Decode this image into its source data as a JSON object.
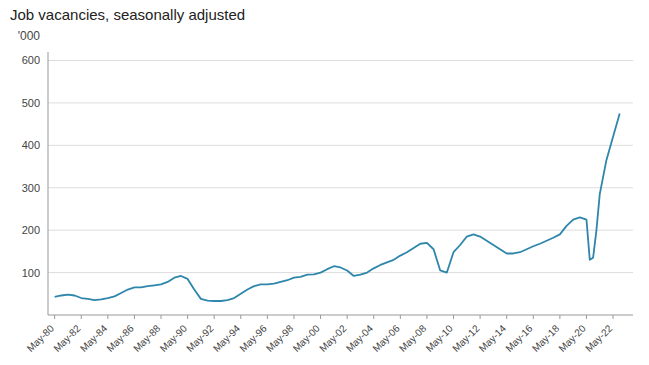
{
  "chart_data": {
    "type": "line",
    "title": "Job vacancies, seasonally adjusted",
    "ylabel": "'000",
    "color": "#2E86AB",
    "grid": true,
    "x": [
      1980,
      1980.5,
      1981,
      1981.5,
      1982,
      1982.5,
      1983,
      1983.5,
      1984,
      1984.5,
      1985,
      1985.5,
      1986,
      1986.5,
      1987,
      1987.5,
      1988,
      1988.5,
      1989,
      1989.5,
      1990,
      1990.5,
      1991,
      1991.5,
      1992,
      1992.5,
      1993,
      1993.5,
      1994,
      1994.5,
      1995,
      1995.5,
      1996,
      1996.5,
      1997,
      1997.5,
      1998,
      1998.5,
      1999,
      1999.5,
      2000,
      2000.5,
      2001,
      2001.5,
      2002,
      2002.5,
      2003,
      2003.5,
      2004,
      2004.5,
      2005,
      2005.5,
      2006,
      2006.5,
      2007,
      2007.5,
      2008,
      2008.5,
      2009,
      2009.5,
      2010,
      2010.5,
      2011,
      2011.5,
      2012,
      2012.5,
      2013,
      2013.5,
      2014,
      2014.5,
      2015,
      2015.5,
      2016,
      2016.5,
      2017,
      2017.5,
      2018,
      2018.5,
      2019,
      2019.5,
      2020,
      2020.25,
      2020.5,
      2020.75,
      2021,
      2021.5,
      2022,
      2022.5
    ],
    "values": [
      43,
      46,
      48,
      46,
      40,
      38,
      35,
      37,
      40,
      44,
      52,
      60,
      65,
      65,
      68,
      70,
      72,
      78,
      88,
      92,
      85,
      60,
      38,
      34,
      33,
      33,
      35,
      40,
      50,
      60,
      68,
      72,
      72,
      74,
      78,
      82,
      88,
      90,
      95,
      96,
      100,
      108,
      115,
      112,
      105,
      92,
      95,
      100,
      110,
      118,
      124,
      130,
      140,
      148,
      158,
      168,
      170,
      155,
      105,
      100,
      148,
      165,
      185,
      190,
      185,
      175,
      165,
      155,
      145,
      145,
      148,
      155,
      162,
      168,
      175,
      182,
      190,
      210,
      225,
      230,
      225,
      130,
      135,
      200,
      285,
      365,
      420,
      475
    ],
    "xlim": [
      1979.5,
      2023.5
    ],
    "xticks": [
      {
        "value": 1980,
        "label": "May-80"
      },
      {
        "value": 1982,
        "label": "May-82"
      },
      {
        "value": 1984,
        "label": "May-84"
      },
      {
        "value": 1986,
        "label": "May-86"
      },
      {
        "value": 1988,
        "label": "May-88"
      },
      {
        "value": 1990,
        "label": "May-90"
      },
      {
        "value": 1992,
        "label": "May-92"
      },
      {
        "value": 1994,
        "label": "May-94"
      },
      {
        "value": 1996,
        "label": "May-96"
      },
      {
        "value": 1998,
        "label": "May-98"
      },
      {
        "value": 2000,
        "label": "May-00"
      },
      {
        "value": 2002,
        "label": "May-02"
      },
      {
        "value": 2004,
        "label": "May-04"
      },
      {
        "value": 2006,
        "label": "May-06"
      },
      {
        "value": 2008,
        "label": "May-08"
      },
      {
        "value": 2010,
        "label": "May-10"
      },
      {
        "value": 2012,
        "label": "May-12"
      },
      {
        "value": 2014,
        "label": "May-14"
      },
      {
        "value": 2016,
        "label": "May-16"
      },
      {
        "value": 2018,
        "label": "May-18"
      },
      {
        "value": 2020,
        "label": "May-20"
      },
      {
        "value": 2022,
        "label": "May-22"
      }
    ],
    "ylim": [
      0,
      620
    ],
    "yticks": [
      100,
      200,
      300,
      400,
      500,
      600
    ]
  }
}
